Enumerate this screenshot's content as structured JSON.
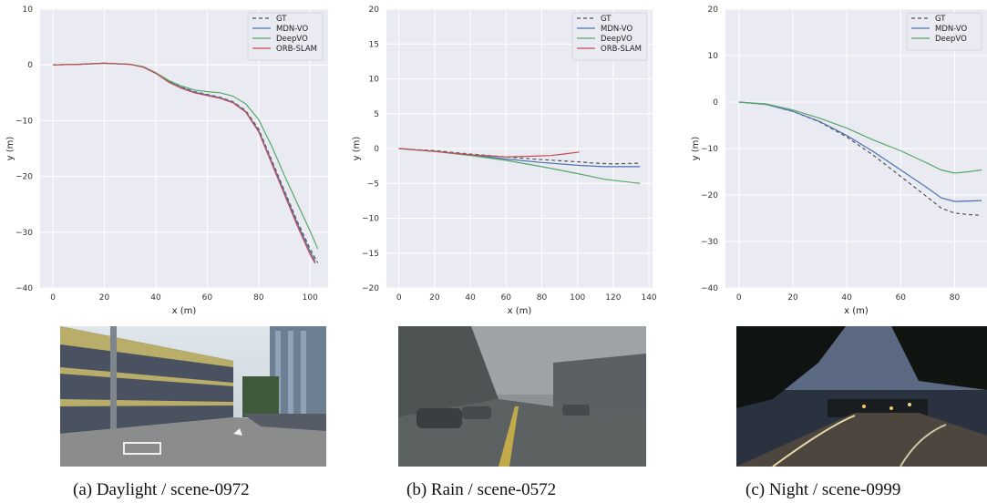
{
  "legend": {
    "entries": [
      {
        "label": "GT",
        "color": "#555555",
        "dash": true
      },
      {
        "label": "MDN-VO",
        "color": "#4c72b0",
        "dash": false
      },
      {
        "label": "DeepVO",
        "color": "#55a868",
        "dash": false
      },
      {
        "label": "ORB-SLAM",
        "color": "#c44e52",
        "dash": false
      }
    ]
  },
  "captions": {
    "a": "(a) Daylight / scene-0972",
    "b": "(b) Rain / scene-0572",
    "c": "(c) Night / scene-0999"
  },
  "chart_data": [
    {
      "type": "line",
      "xlabel": "x (m)",
      "ylabel": "y (m)",
      "xlim": [
        -5,
        107
      ],
      "ylim": [
        -40,
        10
      ],
      "xticks": [
        0,
        20,
        40,
        60,
        80,
        100
      ],
      "yticks": [
        -40,
        -30,
        -20,
        -10,
        0,
        10
      ],
      "legend_position": "top-right",
      "grid": true,
      "series": [
        {
          "name": "GT",
          "color": "#555555",
          "dash": true,
          "points": [
            [
              0,
              0
            ],
            [
              10,
              0.1
            ],
            [
              20,
              0.3
            ],
            [
              30,
              0.1
            ],
            [
              35,
              -0.4
            ],
            [
              40,
              -1.5
            ],
            [
              45,
              -3
            ],
            [
              50,
              -4
            ],
            [
              55,
              -4.8
            ],
            [
              60,
              -5.3
            ],
            [
              65,
              -5.8
            ],
            [
              70,
              -6.6
            ],
            [
              75,
              -8.2
            ],
            [
              80,
              -11.5
            ],
            [
              85,
              -17
            ],
            [
              90,
              -22.5
            ],
            [
              95,
              -28
            ],
            [
              100,
              -33
            ],
            [
              103,
              -35.5
            ]
          ]
        },
        {
          "name": "MDN-VO",
          "color": "#4c72b0",
          "dash": false,
          "points": [
            [
              0,
              0
            ],
            [
              10,
              0.1
            ],
            [
              20,
              0.3
            ],
            [
              30,
              0.1
            ],
            [
              35,
              -0.4
            ],
            [
              40,
              -1.5
            ],
            [
              45,
              -3
            ],
            [
              50,
              -4.1
            ],
            [
              55,
              -4.9
            ],
            [
              60,
              -5.4
            ],
            [
              65,
              -5.9
            ],
            [
              70,
              -6.7
            ],
            [
              75,
              -8.4
            ],
            [
              80,
              -11.8
            ],
            [
              85,
              -17.3
            ],
            [
              90,
              -22.8
            ],
            [
              95,
              -28.4
            ],
            [
              100,
              -33.5
            ],
            [
              102,
              -35.3
            ]
          ]
        },
        {
          "name": "DeepVO",
          "color": "#55a868",
          "dash": false,
          "points": [
            [
              0,
              0
            ],
            [
              10,
              0.1
            ],
            [
              20,
              0.3
            ],
            [
              30,
              0.1
            ],
            [
              35,
              -0.3
            ],
            [
              40,
              -1.4
            ],
            [
              45,
              -2.8
            ],
            [
              50,
              -3.8
            ],
            [
              55,
              -4.5
            ],
            [
              60,
              -4.8
            ],
            [
              65,
              -5
            ],
            [
              70,
              -5.6
            ],
            [
              75,
              -7
            ],
            [
              80,
              -9.8
            ],
            [
              85,
              -14.5
            ],
            [
              90,
              -19.8
            ],
            [
              95,
              -24.8
            ],
            [
              100,
              -29.8
            ],
            [
              103,
              -33
            ]
          ]
        },
        {
          "name": "ORB-SLAM",
          "color": "#c44e52",
          "dash": false,
          "points": [
            [
              0,
              0
            ],
            [
              10,
              0.1
            ],
            [
              20,
              0.3
            ],
            [
              30,
              0.1
            ],
            [
              35,
              -0.4
            ],
            [
              40,
              -1.5
            ],
            [
              45,
              -3.1
            ],
            [
              50,
              -4.2
            ],
            [
              55,
              -5
            ],
            [
              60,
              -5.5
            ],
            [
              65,
              -6
            ],
            [
              70,
              -6.8
            ],
            [
              75,
              -8.5
            ],
            [
              80,
              -12
            ],
            [
              85,
              -17.6
            ],
            [
              90,
              -23.2
            ],
            [
              95,
              -28.8
            ],
            [
              100,
              -34
            ],
            [
              102,
              -35.6
            ]
          ]
        }
      ]
    },
    {
      "type": "line",
      "xlabel": "x (m)",
      "ylabel": "y (m)",
      "xlim": [
        -7,
        142
      ],
      "ylim": [
        -20,
        20
      ],
      "xticks": [
        0,
        20,
        40,
        60,
        80,
        100,
        120,
        140
      ],
      "yticks": [
        -20,
        -15,
        -10,
        -5,
        0,
        5,
        10,
        15,
        20
      ],
      "legend_position": "top-right",
      "grid": true,
      "series": [
        {
          "name": "GT",
          "color": "#555555",
          "dash": true,
          "points": [
            [
              0,
              0
            ],
            [
              20,
              -0.3
            ],
            [
              40,
              -0.8
            ],
            [
              60,
              -1.2
            ],
            [
              80,
              -1.6
            ],
            [
              100,
              -1.9
            ],
            [
              110,
              -2.1
            ],
            [
              120,
              -2.2
            ],
            [
              135,
              -2.1
            ]
          ]
        },
        {
          "name": "MDN-VO",
          "color": "#4c72b0",
          "dash": false,
          "points": [
            [
              0,
              0
            ],
            [
              20,
              -0.4
            ],
            [
              40,
              -0.9
            ],
            [
              60,
              -1.5
            ],
            [
              80,
              -2
            ],
            [
              100,
              -2.4
            ],
            [
              115,
              -2.6
            ],
            [
              135,
              -2.6
            ]
          ]
        },
        {
          "name": "DeepVO",
          "color": "#55a868",
          "dash": false,
          "points": [
            [
              0,
              0
            ],
            [
              20,
              -0.4
            ],
            [
              40,
              -1
            ],
            [
              60,
              -1.7
            ],
            [
              80,
              -2.6
            ],
            [
              100,
              -3.6
            ],
            [
              115,
              -4.4
            ],
            [
              135,
              -5
            ]
          ]
        },
        {
          "name": "ORB-SLAM",
          "color": "#c44e52",
          "dash": false,
          "points": [
            [
              0,
              0
            ],
            [
              20,
              -0.4
            ],
            [
              40,
              -0.9
            ],
            [
              60,
              -1.2
            ],
            [
              75,
              -1.1
            ],
            [
              85,
              -1
            ],
            [
              92,
              -0.8
            ],
            [
              101,
              -0.5
            ]
          ]
        }
      ]
    },
    {
      "type": "line",
      "xlabel": "x (m)",
      "ylabel": "y (m)",
      "xlim": [
        -5,
        92
      ],
      "ylim": [
        -40,
        20
      ],
      "xticks": [
        0,
        20,
        40,
        60,
        80
      ],
      "yticks": [
        -40,
        -30,
        -20,
        -10,
        0,
        10,
        20
      ],
      "legend_position": "top-right",
      "grid": true,
      "series": [
        {
          "name": "GT",
          "color": "#555555",
          "dash": true,
          "points": [
            [
              0,
              0
            ],
            [
              10,
              -0.5
            ],
            [
              20,
              -2
            ],
            [
              30,
              -4.3
            ],
            [
              40,
              -7.5
            ],
            [
              50,
              -11.5
            ],
            [
              60,
              -16
            ],
            [
              70,
              -20.5
            ],
            [
              75,
              -22.8
            ],
            [
              80,
              -23.9
            ],
            [
              85,
              -24.2
            ],
            [
              90,
              -24.4
            ]
          ]
        },
        {
          "name": "MDN-VO",
          "color": "#4c72b0",
          "dash": false,
          "points": [
            [
              0,
              0
            ],
            [
              10,
              -0.5
            ],
            [
              20,
              -2
            ],
            [
              30,
              -4.2
            ],
            [
              40,
              -7.2
            ],
            [
              50,
              -10.7
            ],
            [
              60,
              -14.6
            ],
            [
              70,
              -18.5
            ],
            [
              75,
              -20.6
            ],
            [
              80,
              -21.4
            ],
            [
              85,
              -21.3
            ],
            [
              90,
              -21.2
            ]
          ]
        },
        {
          "name": "DeepVO",
          "color": "#55a868",
          "dash": false,
          "points": [
            [
              0,
              0
            ],
            [
              10,
              -0.4
            ],
            [
              20,
              -1.7
            ],
            [
              30,
              -3.5
            ],
            [
              40,
              -5.6
            ],
            [
              50,
              -8.2
            ],
            [
              60,
              -10.5
            ],
            [
              70,
              -13.2
            ],
            [
              75,
              -14.6
            ],
            [
              80,
              -15.3
            ],
            [
              85,
              -15
            ],
            [
              90,
              -14.6
            ]
          ]
        }
      ]
    }
  ],
  "images": [
    {
      "scene": "daylight"
    },
    {
      "scene": "rain"
    },
    {
      "scene": "night"
    }
  ]
}
